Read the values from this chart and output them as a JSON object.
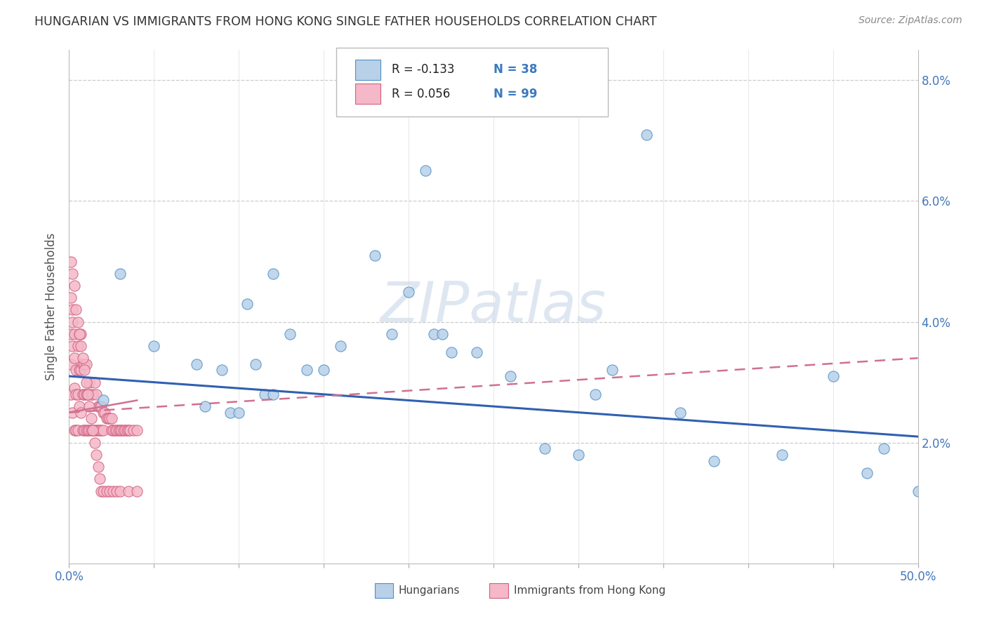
{
  "title": "HUNGARIAN VS IMMIGRANTS FROM HONG KONG SINGLE FATHER HOUSEHOLDS CORRELATION CHART",
  "source": "Source: ZipAtlas.com",
  "ylabel": "Single Father Households",
  "ylabel_right_ticks": [
    "2.0%",
    "4.0%",
    "6.0%",
    "8.0%"
  ],
  "ylabel_right_vals": [
    0.02,
    0.04,
    0.06,
    0.08
  ],
  "legend_r1": "R = -0.133",
  "legend_n1": "N = 38",
  "legend_r2": "R = 0.056",
  "legend_n2": "N = 99",
  "legend_label1": "Hungarians",
  "legend_label2": "Immigrants from Hong Kong",
  "blue_fill": "#b8d0e8",
  "blue_edge": "#5090c8",
  "pink_fill": "#f5b8c8",
  "pink_edge": "#d06080",
  "blue_line_color": "#3060b0",
  "pink_line_color": "#d07090",
  "watermark": "ZIPatlas",
  "xlim": [
    0.0,
    0.5
  ],
  "ylim": [
    0.0,
    0.085
  ],
  "xtick_positions": [
    0.0,
    0.05,
    0.1,
    0.15,
    0.2,
    0.25,
    0.3,
    0.35,
    0.4,
    0.45,
    0.5
  ],
  "ytick_positions": [
    0.02,
    0.04,
    0.06,
    0.08
  ],
  "blue_x": [
    0.02,
    0.03,
    0.05,
    0.075,
    0.08,
    0.09,
    0.095,
    0.1,
    0.105,
    0.11,
    0.115,
    0.12,
    0.13,
    0.14,
    0.16,
    0.18,
    0.19,
    0.21,
    0.215,
    0.22,
    0.225,
    0.24,
    0.26,
    0.28,
    0.3,
    0.32,
    0.34,
    0.36,
    0.38,
    0.42,
    0.45,
    0.47,
    0.48,
    0.5,
    0.12,
    0.15,
    0.2,
    0.31
  ],
  "blue_y": [
    0.027,
    0.048,
    0.036,
    0.033,
    0.026,
    0.032,
    0.025,
    0.025,
    0.043,
    0.033,
    0.028,
    0.028,
    0.038,
    0.032,
    0.036,
    0.051,
    0.038,
    0.065,
    0.038,
    0.038,
    0.035,
    0.035,
    0.031,
    0.019,
    0.018,
    0.032,
    0.071,
    0.025,
    0.017,
    0.018,
    0.031,
    0.015,
    0.019,
    0.012,
    0.048,
    0.032,
    0.045,
    0.028
  ],
  "pink_x": [
    0.001,
    0.001,
    0.001,
    0.002,
    0.002,
    0.002,
    0.003,
    0.003,
    0.003,
    0.003,
    0.004,
    0.004,
    0.004,
    0.005,
    0.005,
    0.005,
    0.006,
    0.006,
    0.006,
    0.007,
    0.007,
    0.007,
    0.008,
    0.008,
    0.008,
    0.009,
    0.009,
    0.009,
    0.01,
    0.01,
    0.01,
    0.011,
    0.011,
    0.012,
    0.012,
    0.013,
    0.013,
    0.014,
    0.014,
    0.015,
    0.015,
    0.016,
    0.016,
    0.017,
    0.017,
    0.018,
    0.018,
    0.019,
    0.019,
    0.02,
    0.02,
    0.021,
    0.022,
    0.023,
    0.024,
    0.025,
    0.025,
    0.026,
    0.027,
    0.028,
    0.029,
    0.03,
    0.031,
    0.032,
    0.033,
    0.034,
    0.035,
    0.036,
    0.038,
    0.04,
    0.001,
    0.001,
    0.002,
    0.002,
    0.003,
    0.004,
    0.005,
    0.006,
    0.007,
    0.008,
    0.009,
    0.01,
    0.011,
    0.012,
    0.013,
    0.014,
    0.015,
    0.016,
    0.017,
    0.018,
    0.019,
    0.02,
    0.022,
    0.024,
    0.026,
    0.028,
    0.03,
    0.035,
    0.04
  ],
  "pink_y": [
    0.038,
    0.033,
    0.028,
    0.042,
    0.036,
    0.025,
    0.038,
    0.034,
    0.029,
    0.022,
    0.032,
    0.028,
    0.022,
    0.036,
    0.028,
    0.022,
    0.038,
    0.032,
    0.026,
    0.038,
    0.032,
    0.025,
    0.033,
    0.028,
    0.022,
    0.033,
    0.028,
    0.022,
    0.033,
    0.028,
    0.022,
    0.028,
    0.022,
    0.03,
    0.022,
    0.028,
    0.022,
    0.028,
    0.022,
    0.03,
    0.022,
    0.028,
    0.022,
    0.026,
    0.022,
    0.026,
    0.022,
    0.026,
    0.022,
    0.025,
    0.022,
    0.025,
    0.024,
    0.024,
    0.024,
    0.024,
    0.022,
    0.022,
    0.022,
    0.022,
    0.022,
    0.022,
    0.022,
    0.022,
    0.022,
    0.022,
    0.022,
    0.022,
    0.022,
    0.022,
    0.05,
    0.044,
    0.048,
    0.04,
    0.046,
    0.042,
    0.04,
    0.038,
    0.036,
    0.034,
    0.032,
    0.03,
    0.028,
    0.026,
    0.024,
    0.022,
    0.02,
    0.018,
    0.016,
    0.014,
    0.012,
    0.012,
    0.012,
    0.012,
    0.012,
    0.012,
    0.012,
    0.012,
    0.012
  ],
  "blue_trend_x": [
    0.0,
    0.5
  ],
  "blue_trend_y": [
    0.031,
    0.021
  ],
  "pink_trend_x": [
    0.0,
    0.5
  ],
  "pink_trend_y": [
    0.025,
    0.034
  ]
}
